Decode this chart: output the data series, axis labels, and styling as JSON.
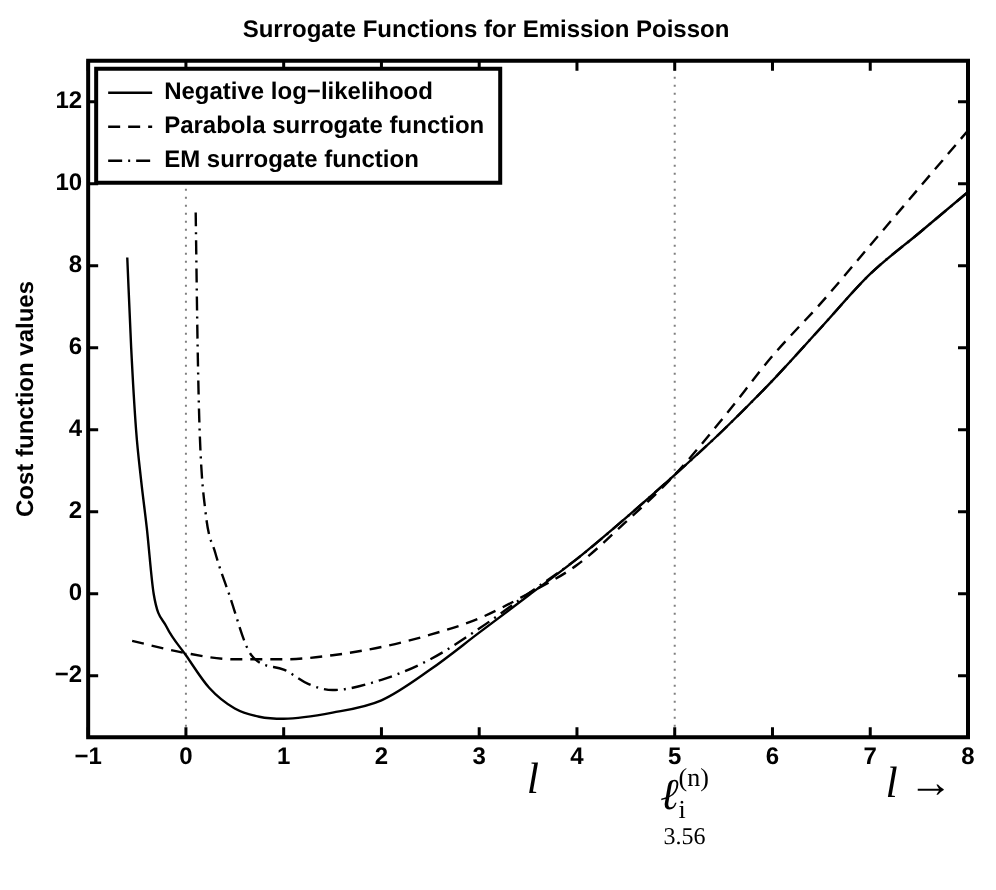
{
  "chart_data": {
    "type": "line",
    "title": "Surrogate Functions for Emission Poisson",
    "ylabel": "Cost function values",
    "xlim": [
      -1,
      8
    ],
    "xticks": [
      {
        "value": -1,
        "label": "−1"
      },
      0,
      1,
      2,
      3,
      4,
      5,
      6,
      7,
      8
    ],
    "ylim": [
      -3.5,
      13
    ],
    "yticks": [
      {
        "value": -2,
        "label": "−2"
      },
      0,
      2,
      4,
      6,
      8,
      10,
      12
    ],
    "grid": false,
    "legend": "top left",
    "marker": "none",
    "series": [
      {
        "name": "Negative log−likelihood",
        "color": "#000000",
        "line_style": "solid",
        "x": [
          -0.6,
          -0.56,
          -0.51,
          -0.46,
          -0.4,
          -0.33,
          -0.2,
          0,
          0.24,
          0.5,
          0.75,
          1,
          1.5,
          2,
          2.5,
          3,
          3.5,
          4,
          4.5,
          5,
          5.5,
          6,
          6.5,
          7,
          7.5,
          8
        ],
        "values": [
          8.2,
          6,
          4,
          2.8,
          1.6,
          0,
          -0.8,
          -1.5,
          -2.3,
          -2.8,
          -3,
          -3.05,
          -2.9,
          -2.6,
          -1.85,
          -0.95,
          -0.05,
          0.85,
          1.85,
          2.9,
          4,
          5.2,
          6.5,
          7.8,
          8.8,
          9.8
        ]
      },
      {
        "name": "Parabola surrogate function",
        "color": "#000000",
        "line_style": "dashed",
        "x": [
          -0.55,
          0,
          0.5,
          1,
          1.5,
          2,
          2.5,
          3,
          3.5,
          4,
          4.5,
          5,
          5.5,
          6,
          6.5,
          7,
          7.5,
          8
        ],
        "values": [
          -1.15,
          -1.45,
          -1.6,
          -1.6,
          -1.5,
          -1.3,
          -1,
          -0.6,
          0,
          0.7,
          1.75,
          2.9,
          4.3,
          5.8,
          7.1,
          8.5,
          9.9,
          11.3
        ]
      },
      {
        "name": "EM surrogate function",
        "color": "#000000",
        "line_style": "dashdot",
        "x": [
          0.1,
          0.12,
          0.14,
          0.2,
          0.3,
          0.44,
          0.67,
          1,
          1.25,
          1.5,
          2,
          2.5,
          3,
          3.5,
          4,
          4.5,
          5,
          5.5,
          6,
          6.5,
          7,
          7.5,
          8
        ],
        "values": [
          9.3,
          6,
          4,
          2,
          1,
          0,
          -1.5,
          -1.85,
          -2.2,
          -2.35,
          -2.1,
          -1.6,
          -0.85,
          0,
          0.85,
          1.85,
          2.9,
          4,
          5.2,
          6.5,
          7.8,
          8.8,
          9.8
        ]
      }
    ],
    "ref_lines": [
      {
        "axis": "x",
        "value": 0,
        "line_style": "dotted",
        "color": "#808080"
      },
      {
        "axis": "x",
        "value": 5,
        "line_style": "dotted",
        "color": "#808080"
      }
    ],
    "annotations": [
      "l",
      "ℓ$_{i}$$^{(n)}$",
      "3.56",
      "l →"
    ]
  }
}
